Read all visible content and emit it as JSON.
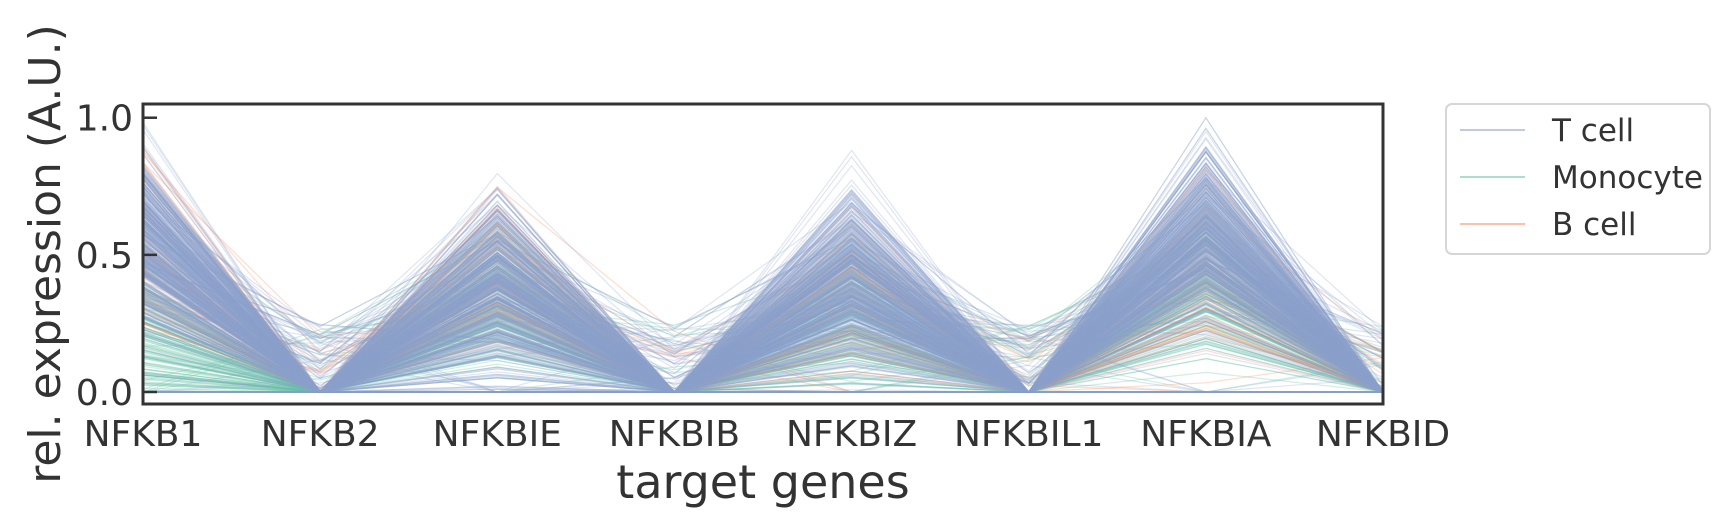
{
  "chart_data": {
    "type": "line",
    "subtype": "parallel-coordinates",
    "title": "",
    "xlabel": "target genes",
    "ylabel": "rel. expression (A.U.)",
    "categories": [
      "NFKB1",
      "NFKB2",
      "NFKBIE",
      "NFKBIB",
      "NFKBIZ",
      "NFKBIL1",
      "NFKBIA",
      "NFKBID"
    ],
    "ylim": [
      0.0,
      1.05
    ],
    "yticks": [
      {
        "value": 0.0,
        "label": "0.0"
      },
      {
        "value": 0.5,
        "label": "0.5"
      },
      {
        "value": 1.0,
        "label": "1.0"
      }
    ],
    "grid": false,
    "legend": {
      "placement": "outside-right-top",
      "entries": [
        "T cell",
        "Monocyte",
        "B cell"
      ]
    },
    "colors": {
      "T cell": "#8da0cb",
      "Monocyte": "#66c2a5",
      "B cell": "#fc8d62",
      "frame": "#333333"
    },
    "series": [
      {
        "name": "T cell",
        "n_lines": 520,
        "mean_profile": [
          0.55,
          0.0,
          0.4,
          0.0,
          0.42,
          0.0,
          0.58,
          0.0
        ],
        "spread": 0.16
      },
      {
        "name": "Monocyte",
        "n_lines": 160,
        "mean_profile": [
          0.2,
          0.0,
          0.35,
          0.0,
          0.28,
          0.0,
          0.4,
          0.0
        ],
        "spread": 0.14
      },
      {
        "name": "B cell",
        "n_lines": 70,
        "mean_profile": [
          0.55,
          0.0,
          0.45,
          0.0,
          0.4,
          0.0,
          0.45,
          0.0
        ],
        "spread": 0.16
      }
    ]
  }
}
